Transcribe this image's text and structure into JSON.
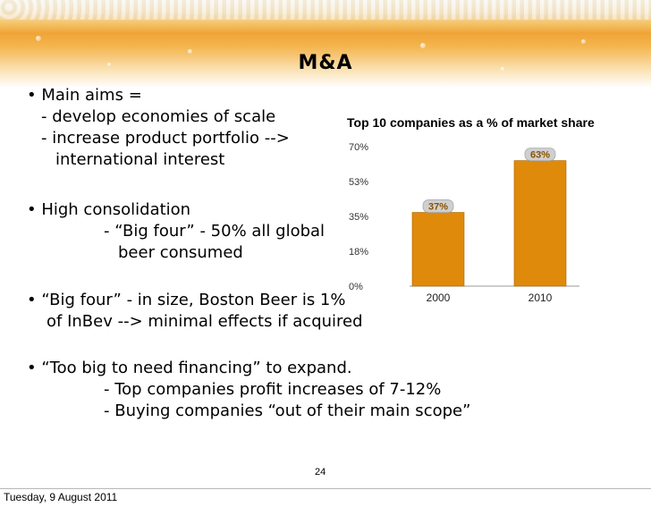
{
  "slide": {
    "title": "M&A",
    "bullets": [
      "• Main aims =",
      "- develop economies of scale",
      "- increase product portfolio -->",
      "international interest",
      "• High consolidation",
      "- “Big four” - 50% all global",
      "beer consumed",
      "• “Big four” - in size, Boston Beer is 1%",
      "of InBev --> minimal effects if acquired",
      "• “Too big to need financing” to expand.",
      "- Top companies profit increases of 7-12%",
      "- Buying companies “out of their main scope”"
    ],
    "page_number": "24",
    "date": "Tuesday, 9 August 2011"
  },
  "chart_data": {
    "type": "bar",
    "title": "Top 10 companies as a % of market share",
    "categories": [
      "2000",
      "2010"
    ],
    "values": [
      37,
      63
    ],
    "data_labels": [
      "37%",
      "63%"
    ],
    "yticks": [
      "0%",
      "18%",
      "35%",
      "53%",
      "70%"
    ],
    "ylim": [
      0,
      70
    ],
    "bar_color": "#e08a0b",
    "grid": false
  }
}
